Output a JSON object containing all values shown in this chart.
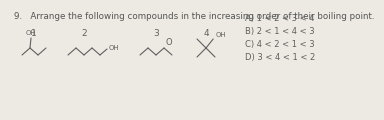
{
  "title": "9.   Arrange the following compounds in the increasing order of their boiling point.",
  "title_fontsize": 6.3,
  "title_color": "#555555",
  "bg_color": "#edeae3",
  "answer_options": [
    "A) 1 < 2 < 3 < 4",
    "B) 2 < 1 < 4 < 3",
    "C) 4 < 2 < 1 < 3",
    "D) 3 < 4 < 1 < 2"
  ],
  "answer_fontsize": 6.0,
  "label_fontsize": 6.5,
  "oh_fontsize": 5.0,
  "lw": 0.8,
  "lc": "#606060"
}
